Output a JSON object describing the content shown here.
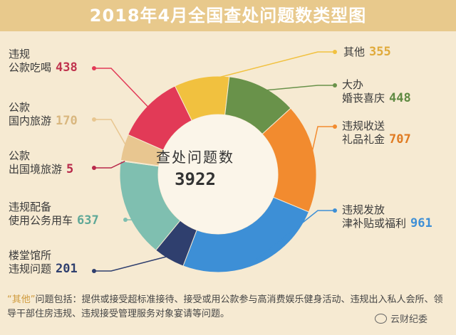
{
  "title": "2018年4月全国查处问题数类型图",
  "center": {
    "title": "查处问题数",
    "value": "3922"
  },
  "chart_data": {
    "type": "pie",
    "title": "2018年4月全国查处问题数类型图",
    "total": 3922,
    "categories": [
      "其他",
      "大办婚丧喜庆",
      "违规收送礼品礼金",
      "违规发放津补贴或福利",
      "楼堂馆所违规问题",
      "违规配备使用公务用车",
      "公款出国境旅游",
      "公款国内旅游",
      "违规公款吃喝"
    ],
    "values": [
      355,
      448,
      707,
      961,
      201,
      637,
      5,
      170,
      438
    ],
    "colors": [
      "#f1c13f",
      "#69924a",
      "#f28b2f",
      "#3d8fd6",
      "#2f3f6e",
      "#7fbfb0",
      "#b8284a",
      "#e8c690",
      "#e23a57"
    ]
  },
  "labels": [
    {
      "lines": [
        "违规",
        "公款吃喝"
      ],
      "value": "438",
      "color": "#c0344e"
    },
    {
      "lines": [
        "公款",
        "国内旅游"
      ],
      "value": "170",
      "color": "#d9b77f"
    },
    {
      "lines": [
        "公款",
        "出国境旅游"
      ],
      "value": "5",
      "color": "#b8284a"
    },
    {
      "lines": [
        "违规配备",
        "使用公务用车"
      ],
      "value": "637",
      "color": "#5ea897"
    },
    {
      "lines": [
        "楼堂馆所",
        "违规问题"
      ],
      "value": "201",
      "color": "#2f3f6e"
    },
    {
      "lines": [
        "其他"
      ],
      "value": "355",
      "color": "#e0aa3a"
    },
    {
      "lines": [
        "大办",
        "婚丧喜庆"
      ],
      "value": "448",
      "color": "#5f8a42"
    },
    {
      "lines": [
        "违规收送",
        "礼品礼金"
      ],
      "value": "707",
      "color": "#e07b22"
    },
    {
      "lines": [
        "违规发放",
        "津补贴或福利"
      ],
      "value": "961",
      "color": "#3d8fd6"
    }
  ],
  "footnote": {
    "highlight": "“其他”",
    "text": "问题包括：提供或接受超标准接待、接受或用公款参与高消费娱乐健身活动、违规出入私人会所、领导干部住房违规、违规接受管理服务对象宴请等问题。"
  },
  "watermark": "云财纪委"
}
